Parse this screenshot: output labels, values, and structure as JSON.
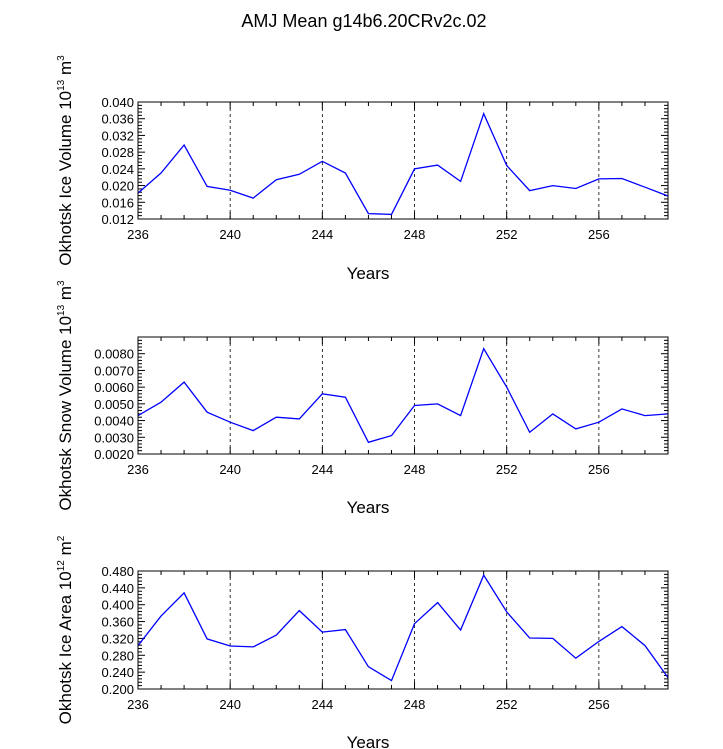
{
  "title": "AMJ Mean g14b6.20CRv2c.02",
  "colors": {
    "line": "#0000ff",
    "frame": "#000000",
    "background": "#ffffff"
  },
  "chart_data": [
    {
      "type": "line",
      "xlabel": "Years",
      "ylabel": {
        "main": "Okhotsk Ice Volume 10",
        "sup": "13",
        "unit": " m",
        "unit_sup": "3"
      },
      "xlim": [
        236,
        259
      ],
      "ylim": [
        0.012,
        0.04
      ],
      "xticks": [
        236,
        240,
        244,
        248,
        252,
        256
      ],
      "yticks": [
        "0.012",
        "0.016",
        "0.020",
        "0.024",
        "0.028",
        "0.032",
        "0.036",
        "0.040"
      ],
      "grid": "vertical dashed at major x ticks",
      "x": [
        236,
        237,
        238,
        239,
        240,
        241,
        242,
        243,
        244,
        245,
        246,
        247,
        248,
        249,
        250,
        251,
        252,
        253,
        254,
        255,
        256,
        257,
        258,
        259
      ],
      "values": [
        0.0182,
        0.023,
        0.0297,
        0.0198,
        0.0189,
        0.017,
        0.0214,
        0.0227,
        0.0258,
        0.023,
        0.0133,
        0.0131,
        0.024,
        0.0249,
        0.021,
        0.0372,
        0.0248,
        0.0188,
        0.02,
        0.0193,
        0.0216,
        0.0217,
        0.0196,
        0.0175
      ]
    },
    {
      "type": "line",
      "xlabel": "Years",
      "ylabel": {
        "main": "Okhotsk Snow Volume 10",
        "sup": "13",
        "unit": " m",
        "unit_sup": "3"
      },
      "xlim": [
        236,
        259
      ],
      "ylim": [
        0.002,
        0.009
      ],
      "xticks": [
        236,
        240,
        244,
        248,
        252,
        256
      ],
      "yticks": [
        "0.0020",
        "0.0030",
        "0.0040",
        "0.0050",
        "0.0060",
        "0.0070",
        "0.0080"
      ],
      "grid": "vertical dashed at major x ticks",
      "x": [
        236,
        237,
        238,
        239,
        240,
        241,
        242,
        243,
        244,
        245,
        246,
        247,
        248,
        249,
        250,
        251,
        252,
        253,
        254,
        255,
        256,
        257,
        258,
        259
      ],
      "values": [
        0.0043,
        0.0051,
        0.0063,
        0.0045,
        0.0039,
        0.0034,
        0.0042,
        0.0041,
        0.0056,
        0.0054,
        0.0027,
        0.0031,
        0.0049,
        0.005,
        0.0043,
        0.0083,
        0.006,
        0.0033,
        0.0044,
        0.0035,
        0.0039,
        0.0047,
        0.0043,
        0.0044
      ]
    },
    {
      "type": "line",
      "xlabel": "Years",
      "ylabel": {
        "main": "Okhotsk Ice Area 10",
        "sup": "12",
        "unit": " m",
        "unit_sup": "2"
      },
      "xlim": [
        236,
        259
      ],
      "ylim": [
        0.2,
        0.48
      ],
      "xticks": [
        236,
        240,
        244,
        248,
        252,
        256
      ],
      "yticks": [
        "0.200",
        "0.240",
        "0.280",
        "0.320",
        "0.360",
        "0.400",
        "0.440",
        "0.480"
      ],
      "grid": "vertical dashed at major x ticks",
      "x": [
        236,
        237,
        238,
        239,
        240,
        241,
        242,
        243,
        244,
        245,
        246,
        247,
        248,
        249,
        250,
        251,
        252,
        253,
        254,
        255,
        256,
        257,
        258,
        259
      ],
      "values": [
        0.303,
        0.373,
        0.428,
        0.319,
        0.302,
        0.3,
        0.328,
        0.386,
        0.335,
        0.341,
        0.253,
        0.22,
        0.355,
        0.405,
        0.34,
        0.47,
        0.383,
        0.321,
        0.32,
        0.273,
        0.313,
        0.348,
        0.303,
        0.227
      ]
    }
  ]
}
